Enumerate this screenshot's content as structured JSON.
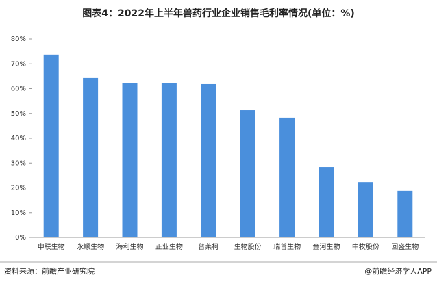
{
  "chart_data": {
    "type": "bar",
    "title": "图表4：2022年上半年兽药行业企业销售毛利率情况(单位：%)",
    "categories": [
      "申联生物",
      "永顺生物",
      "海利生物",
      "正业生物",
      "普莱柯",
      "生物股份",
      "瑞普生物",
      "金河生物",
      "中牧股份",
      "回盛生物"
    ],
    "values": [
      73.7,
      64.3,
      62.1,
      62.1,
      61.8,
      51.3,
      48.3,
      28.4,
      22.3,
      18.8
    ],
    "color": "#4a8fdc",
    "ylim": [
      0,
      80
    ],
    "yticks": [
      {
        "value": 0,
        "label": "0%"
      },
      {
        "value": 10,
        "label": "10%"
      },
      {
        "value": 20,
        "label": "20%"
      },
      {
        "value": 30,
        "label": "30%"
      },
      {
        "value": 40,
        "label": "40%"
      },
      {
        "value": 50,
        "label": "50%"
      },
      {
        "value": 60,
        "label": "60%"
      },
      {
        "value": 70,
        "label": "70%"
      },
      {
        "value": 80,
        "label": "80%"
      }
    ],
    "grid": false
  },
  "footer": {
    "source": "资料来源：前瞻产业研究院",
    "brand": "@前瞻经济学人APP"
  }
}
